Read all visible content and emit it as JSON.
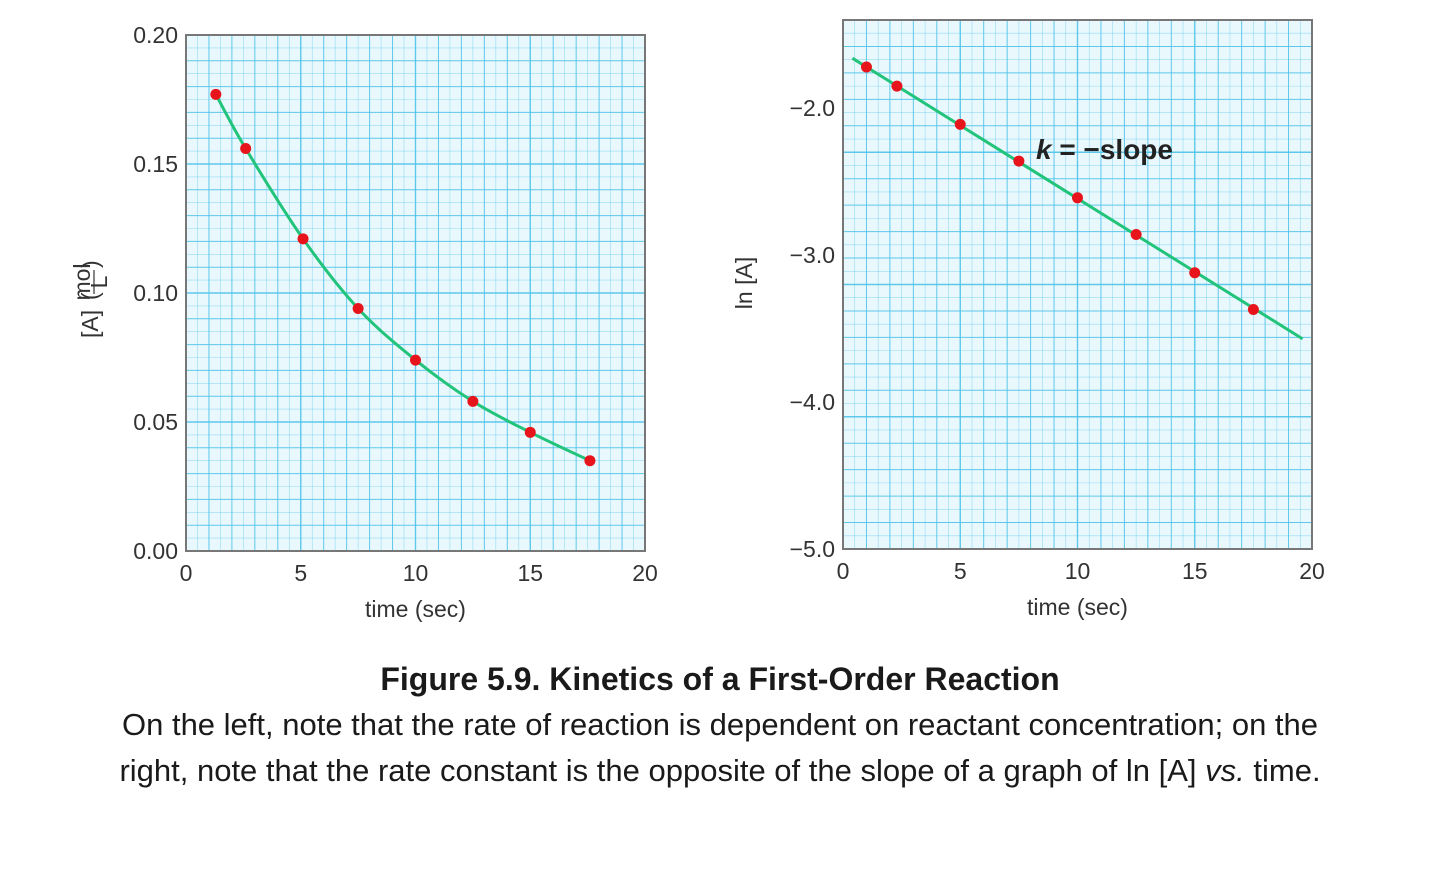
{
  "chart_data": [
    {
      "type": "line",
      "title": "",
      "xlabel": "time (sec)",
      "ylabel": "[A] (mol/L)",
      "ylabel_main": "[A]",
      "ylabel_unit_num": "mol",
      "ylabel_unit_den": "L",
      "xlim": [
        0,
        20
      ],
      "ylim": [
        0.0,
        0.2
      ],
      "xticks": [
        "0",
        "5",
        "10",
        "15",
        "20"
      ],
      "yticks": [
        "0.00",
        "0.05",
        "0.10",
        "0.15",
        "0.20"
      ],
      "grid": true,
      "series": [
        {
          "name": "[A]",
          "x": [
            1.3,
            2.6,
            5.1,
            7.5,
            10.0,
            12.5,
            15.0,
            17.6
          ],
          "y": [
            0.177,
            0.156,
            0.121,
            0.094,
            0.074,
            0.058,
            0.046,
            0.035
          ],
          "marker_color": "#e8141c",
          "line_color": "#22c37a"
        }
      ]
    },
    {
      "type": "line",
      "title": "",
      "xlabel": "time (sec)",
      "ylabel": "ln [A]",
      "xlim": [
        0,
        20
      ],
      "ylim": [
        -5.0,
        -1.4
      ],
      "xticks": [
        "0",
        "5",
        "10",
        "15",
        "20"
      ],
      "yticks": [
        "−5.0",
        "−4.0",
        "−3.0",
        "−2.0"
      ],
      "grid": true,
      "annotation": "k = −slope",
      "annotation_italic": "k",
      "annotation_rest": " = −slope",
      "series": [
        {
          "name": "ln [A]",
          "x": [
            1.0,
            2.3,
            5.0,
            7.5,
            10.0,
            12.5,
            15.0,
            17.5
          ],
          "y": [
            -1.72,
            -1.85,
            -2.11,
            -2.36,
            -2.61,
            -2.86,
            -3.12,
            -3.37
          ],
          "marker_color": "#e8141c",
          "line_color": "#22c37a",
          "fit_line": {
            "x": [
              0.4,
              19.6
            ],
            "y": [
              -1.66,
              -3.57
            ]
          }
        }
      ]
    }
  ],
  "caption": {
    "title": "Figure 5.9.  Kinetics of a First-Order Reaction",
    "body_part1": "On the left, note that the rate of reaction is dependent on reactant concentration; on the right, note that the rate constant is the opposite of the slope of a graph of ln [A] ",
    "body_italic": "vs.",
    "body_part2": " time."
  },
  "colors": {
    "grid": "#4fc3ea",
    "grid_bg": "#e9f8fd",
    "frame": "#777777"
  }
}
